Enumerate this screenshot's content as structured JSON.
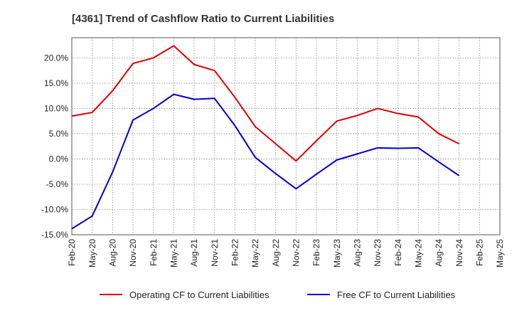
{
  "chart_data": {
    "type": "line",
    "title": "[4361]  Trend of Cashflow Ratio to Current Liabilities",
    "xlabel": "",
    "ylabel": "",
    "categories": [
      "Feb-20",
      "May-20",
      "Aug-20",
      "Nov-20",
      "Feb-21",
      "May-21",
      "Aug-21",
      "Nov-21",
      "Feb-22",
      "May-22",
      "Aug-22",
      "Nov-22",
      "Feb-23",
      "May-23",
      "Aug-23",
      "Nov-23",
      "Feb-24",
      "May-24",
      "Aug-24",
      "Nov-24",
      "Feb-25",
      "May-25"
    ],
    "ylim": [
      -15,
      24
    ],
    "yticks": [
      -15,
      -10,
      -5,
      0,
      5,
      10,
      15,
      20
    ],
    "ytick_labels": [
      "-15.0%",
      "-10.0%",
      "-5.0%",
      "0.0%",
      "5.0%",
      "10.0%",
      "15.0%",
      "20.0%"
    ],
    "grid": true,
    "legend_position": "bottom",
    "series": [
      {
        "name": "Operating CF to Current Liabilities",
        "color": "#dd0000",
        "values": [
          8.5,
          9.2,
          13.5,
          18.9,
          20.0,
          22.4,
          18.7,
          17.5,
          12.2,
          6.4,
          3.0,
          -0.4,
          3.6,
          7.5,
          8.6,
          10.0,
          9.0,
          8.3,
          5.0,
          3.0,
          null,
          null
        ]
      },
      {
        "name": "Free CF to Current Liabilities",
        "color": "#0000cc",
        "values": [
          -13.8,
          -11.3,
          -2.6,
          7.7,
          10.0,
          12.8,
          11.8,
          12.0,
          6.6,
          0.3,
          -2.9,
          -5.9,
          -3.0,
          -0.2,
          1.0,
          2.2,
          2.1,
          2.2,
          -0.6,
          -3.3,
          null,
          null
        ]
      }
    ]
  }
}
